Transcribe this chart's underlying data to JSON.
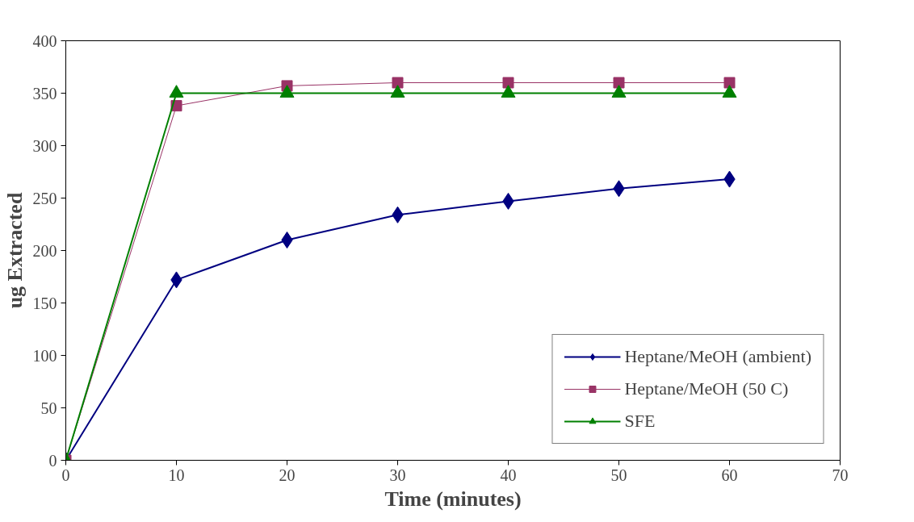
{
  "chart_data": {
    "type": "line",
    "xlabel": "Time (minutes)",
    "ylabel": "ug Extracted",
    "x": [
      0,
      10,
      20,
      30,
      40,
      50,
      60
    ],
    "xlim": [
      0,
      70
    ],
    "xticks": [
      0,
      10,
      20,
      30,
      40,
      50,
      60,
      70
    ],
    "ylim": [
      0,
      400
    ],
    "yticks": [
      0,
      50,
      100,
      150,
      200,
      250,
      300,
      350,
      400
    ],
    "grid": false,
    "legend": "bottom right",
    "series": [
      {
        "name": "Heptane/MeOH (ambient)",
        "color": "#000080",
        "marker": "diamond",
        "values": [
          0,
          172,
          210,
          234,
          247,
          259,
          268
        ]
      },
      {
        "name": "Heptane/MeOH (50 C)",
        "color": "#993366",
        "marker": "square",
        "values": [
          0,
          338,
          357,
          360,
          360,
          360,
          360
        ]
      },
      {
        "name": "SFE",
        "color": "#008000",
        "marker": "triangle",
        "values": [
          0,
          350,
          350,
          350,
          350,
          350,
          350
        ]
      }
    ]
  }
}
